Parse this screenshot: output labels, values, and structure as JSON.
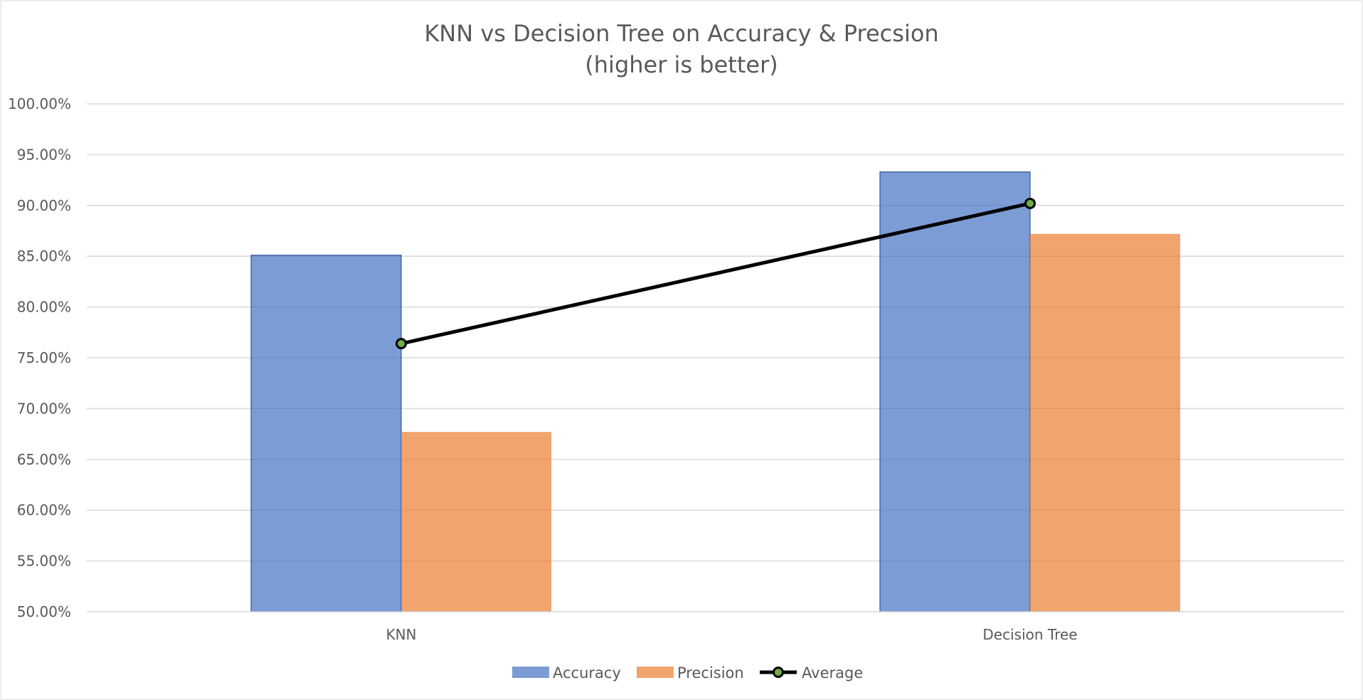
{
  "chart_data": {
    "type": "bar",
    "title": "KNN vs Decision Tree on Accuracy & Precsion",
    "subtitle": "(higher is better)",
    "categories": [
      "KNN",
      "Decision Tree"
    ],
    "series": [
      {
        "name": "Accuracy",
        "type": "bar",
        "color": "#4472C4",
        "values": [
          0.851,
          0.933
        ]
      },
      {
        "name": "Precision",
        "type": "bar",
        "color": "#ED7D31",
        "values": [
          0.677,
          0.872
        ]
      },
      {
        "name": "Average",
        "type": "line",
        "color": "#000000",
        "marker_color": "#70AD47",
        "values": [
          0.764,
          0.902
        ]
      }
    ],
    "ylim": [
      0.5,
      1.0
    ],
    "y_ticks": [
      "50.00%",
      "55.00%",
      "60.00%",
      "65.00%",
      "70.00%",
      "75.00%",
      "80.00%",
      "85.00%",
      "90.00%",
      "95.00%",
      "100.00%"
    ],
    "y_tick_values": [
      0.5,
      0.55,
      0.6,
      0.65,
      0.7,
      0.75,
      0.8,
      0.85,
      0.9,
      0.95,
      1.0
    ],
    "grid": true,
    "legend_position": "bottom"
  }
}
